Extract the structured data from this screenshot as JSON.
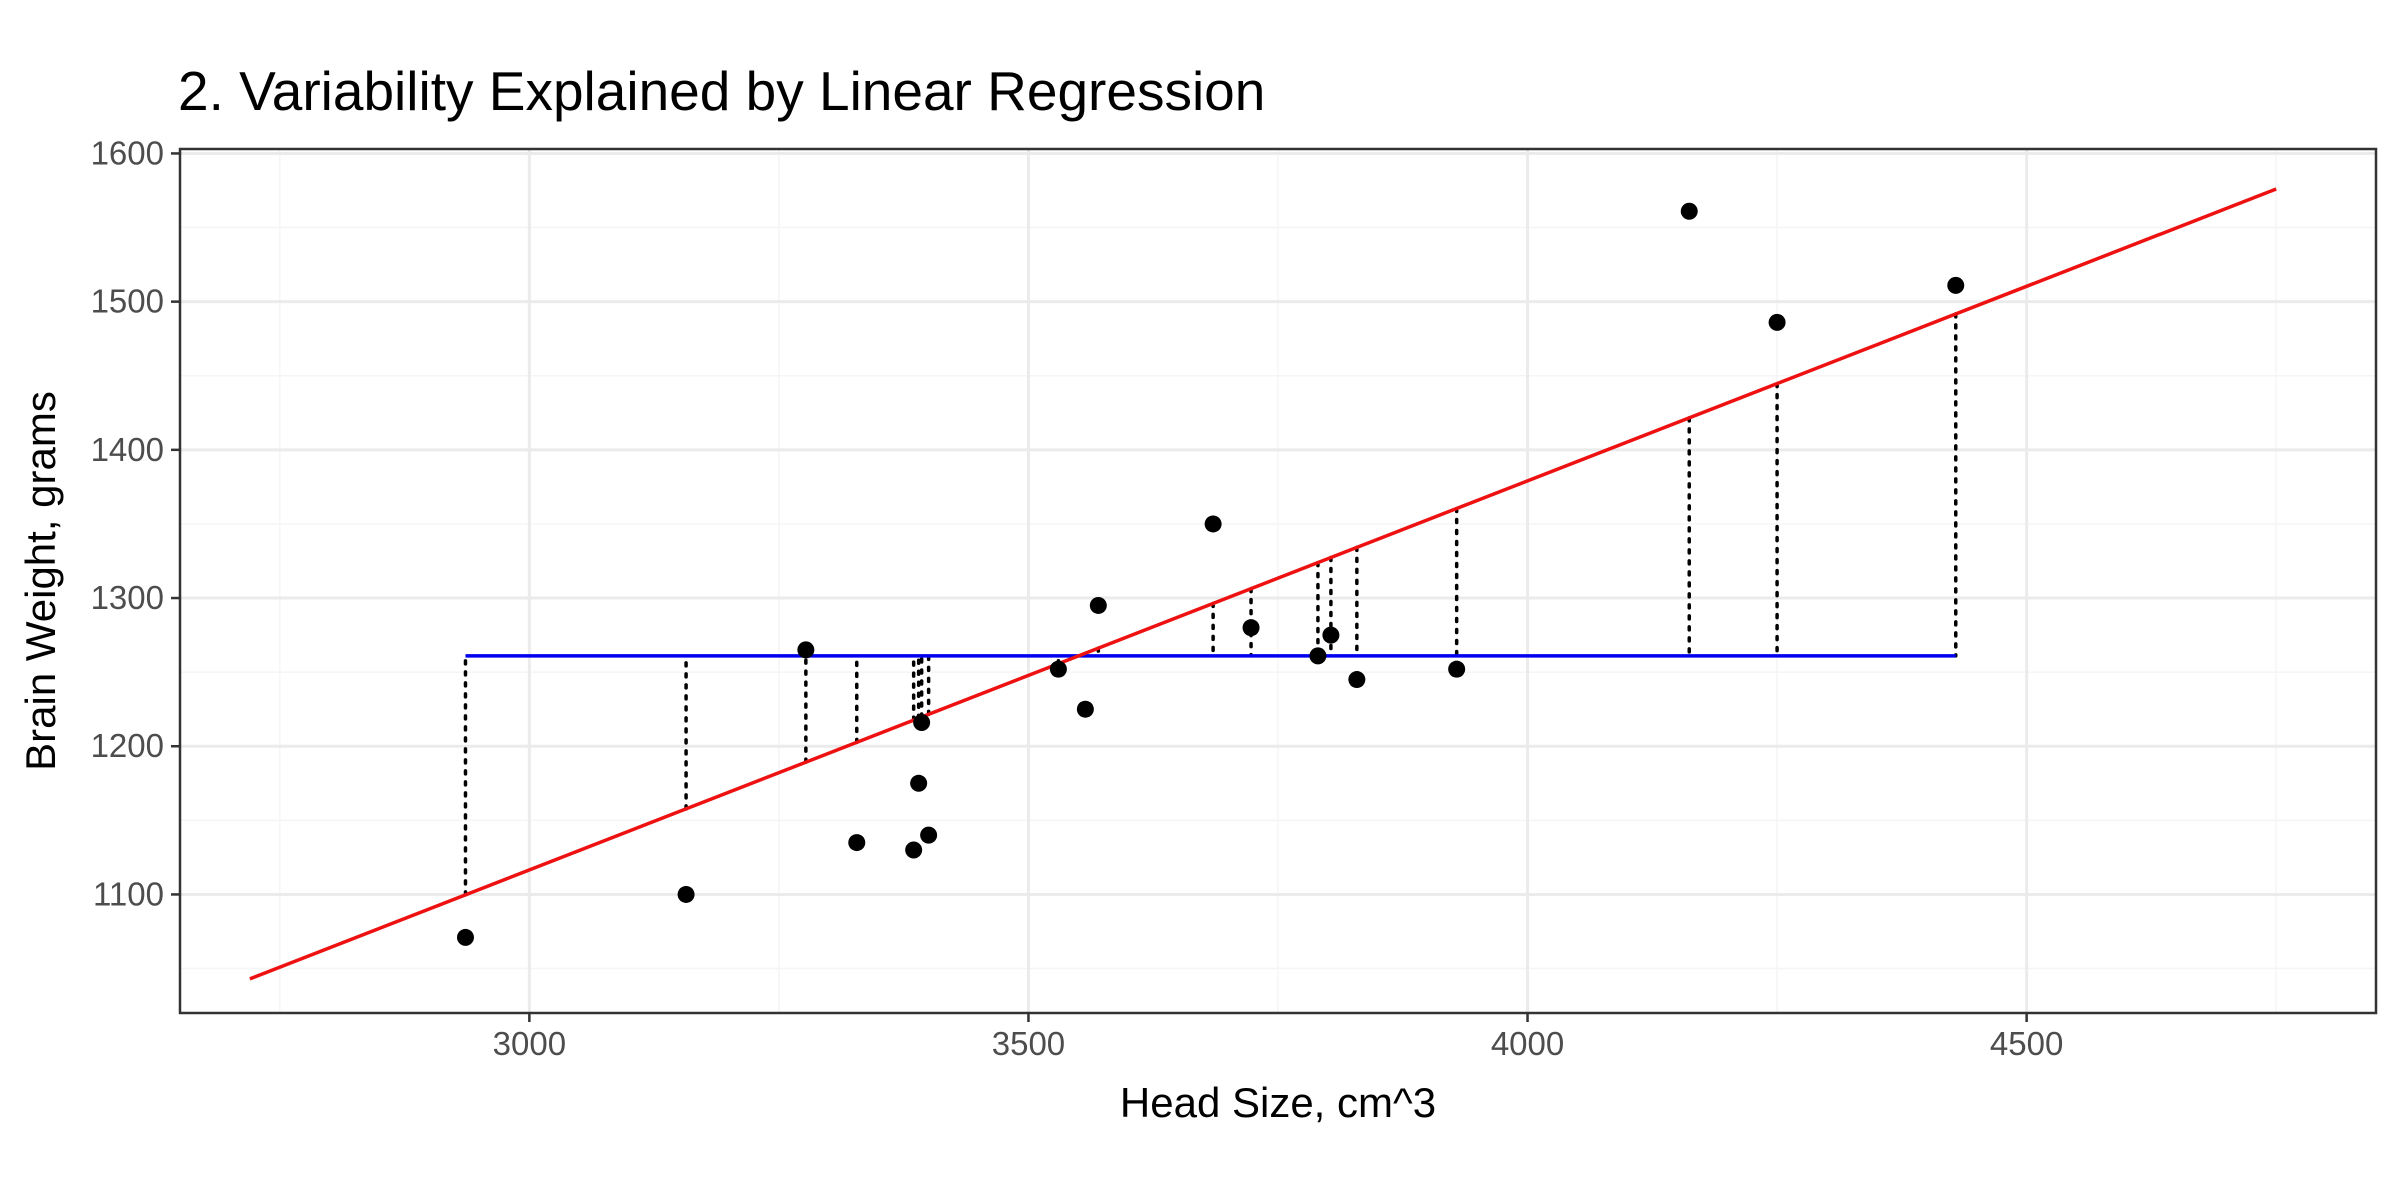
{
  "chart_data": {
    "type": "scatter",
    "title": "2. Variability Explained by Linear Regression",
    "xlabel": "Head Size, cm^3",
    "ylabel": "Brain Weight, grams",
    "xlim": [
      2650,
      4850
    ],
    "ylim": [
      1020,
      1603
    ],
    "x_ticks": [
      3000,
      3500,
      4000,
      4500
    ],
    "y_ticks": [
      1100,
      1200,
      1300,
      1400,
      1500,
      1600
    ],
    "grid": true,
    "legend": "none",
    "colors": {
      "points": "#000000",
      "regression_line": "#ee1111",
      "mean_line": "#0000ee",
      "residual_lines": "#000000",
      "grid_major": "#ebebeb",
      "grid_minor": "#f5f5f5",
      "panel_border": "#333333"
    },
    "mean_line": {
      "y": 1261,
      "x_range": [
        2936,
        4429
      ]
    },
    "regression_line": {
      "x": [
        2720,
        4750
      ],
      "y": [
        1043,
        1576
      ]
    },
    "points": [
      {
        "x": 2936,
        "y": 1071
      },
      {
        "x": 3157,
        "y": 1100
      },
      {
        "x": 3277,
        "y": 1265
      },
      {
        "x": 3328,
        "y": 1135
      },
      {
        "x": 3385,
        "y": 1130
      },
      {
        "x": 3390,
        "y": 1175
      },
      {
        "x": 3393,
        "y": 1216
      },
      {
        "x": 3400,
        "y": 1140
      },
      {
        "x": 3530,
        "y": 1252
      },
      {
        "x": 3557,
        "y": 1225
      },
      {
        "x": 3570,
        "y": 1295
      },
      {
        "x": 3685,
        "y": 1350
      },
      {
        "x": 3723,
        "y": 1280
      },
      {
        "x": 3790,
        "y": 1261
      },
      {
        "x": 3803,
        "y": 1275
      },
      {
        "x": 3829,
        "y": 1245
      },
      {
        "x": 3929,
        "y": 1252
      },
      {
        "x": 4162,
        "y": 1561
      },
      {
        "x": 4250,
        "y": 1486
      },
      {
        "x": 4429,
        "y": 1511
      }
    ]
  }
}
